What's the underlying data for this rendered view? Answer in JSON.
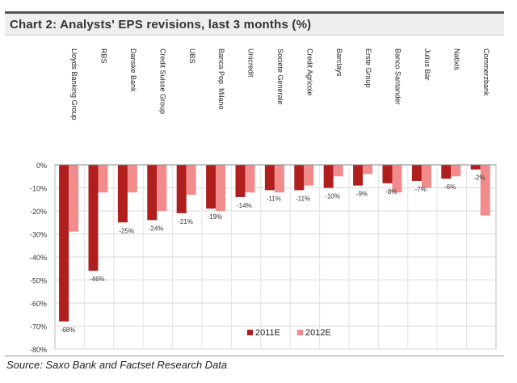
{
  "title": "Chart 2: Analysts' EPS revisions, last 3 months (%)",
  "source": "Source: Saxo Bank and Factset Research Data",
  "chart_data": {
    "type": "bar",
    "categories": [
      "Lloyds Banking Group",
      "RBS",
      "Danske Bank",
      "Credit Suisse Group",
      "UBS",
      "Banca Pop. Milano",
      "Unicredit",
      "Societe Generale",
      "Credit Agricole",
      "Barclays",
      "Erste Group",
      "Banco Santander",
      "Julius Bär",
      "Natixis",
      "Commerzbank"
    ],
    "series": [
      {
        "name": "2011E",
        "color": "#b01e1e",
        "values": [
          -68,
          -46,
          -25,
          -24,
          -21,
          -19,
          -14,
          -11,
          -11,
          -10,
          -9,
          -8,
          -7,
          -6,
          -2
        ]
      },
      {
        "name": "2012E",
        "color": "#f28c8c",
        "values": [
          -29,
          -12,
          -12,
          -20,
          -13,
          -20,
          -12,
          -12,
          -9,
          -5,
          -4,
          -12,
          -10,
          -5,
          -22
        ]
      }
    ],
    "data_labels": [
      "-68%",
      "-46%",
      "-25%",
      "-24%",
      "-21%",
      "-19%",
      "-14%",
      "-11%",
      "-11%",
      "-10%",
      "-9%",
      "-8%",
      "-7%",
      "-6%",
      "-2%"
    ],
    "ylim": [
      -80,
      0
    ],
    "yticks": [
      0,
      -10,
      -20,
      -30,
      -40,
      -50,
      -60,
      -70,
      -80
    ],
    "ytick_labels": [
      "0%",
      "-10%",
      "-20%",
      "-30%",
      "-40%",
      "-50%",
      "-60%",
      "-70%",
      "-80%"
    ],
    "legend_position": "bottom-right",
    "grid": true
  }
}
